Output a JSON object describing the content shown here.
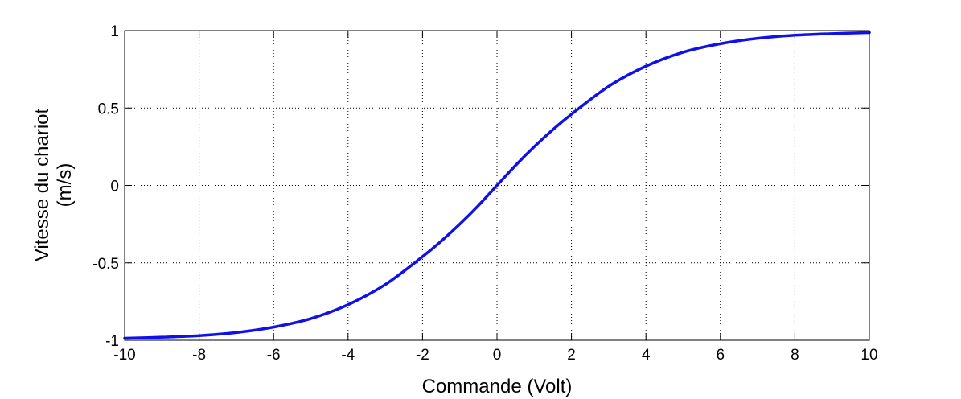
{
  "chart_data": {
    "type": "line",
    "title": "",
    "xlabel": "Commande (Volt)",
    "ylabel": [
      "Vitesse du chariot",
      "(m/s)"
    ],
    "xlim": [
      -10,
      10
    ],
    "ylim": [
      -1,
      1
    ],
    "xticks": [
      -10,
      -8,
      -6,
      -4,
      -2,
      0,
      2,
      4,
      6,
      8,
      10
    ],
    "yticks": [
      -1,
      -0.5,
      0,
      0.5,
      1
    ],
    "xtick_labels": [
      "-10",
      "-8",
      "-6",
      "-4",
      "-2",
      "0",
      "2",
      "4",
      "6",
      "8",
      "10"
    ],
    "ytick_labels": [
      "-1",
      "-0.5",
      "0",
      "0.5",
      "1"
    ],
    "grid": true,
    "series": [
      {
        "color": "#1010e8",
        "x": [
          -10,
          -9,
          -8,
          -7,
          -6,
          -5,
          -4,
          -3,
          -2,
          -1.5,
          -1,
          -0.5,
          0,
          0.5,
          1,
          1.5,
          2,
          3,
          4,
          5,
          6,
          7,
          8,
          9,
          10
        ],
        "y": [
          -0.987,
          -0.98,
          -0.97,
          -0.95,
          -0.915,
          -0.86,
          -0.77,
          -0.64,
          -0.46,
          -0.36,
          -0.25,
          -0.13,
          0.0,
          0.13,
          0.25,
          0.36,
          0.46,
          0.64,
          0.77,
          0.86,
          0.915,
          0.95,
          0.97,
          0.98,
          0.987
        ]
      }
    ]
  }
}
